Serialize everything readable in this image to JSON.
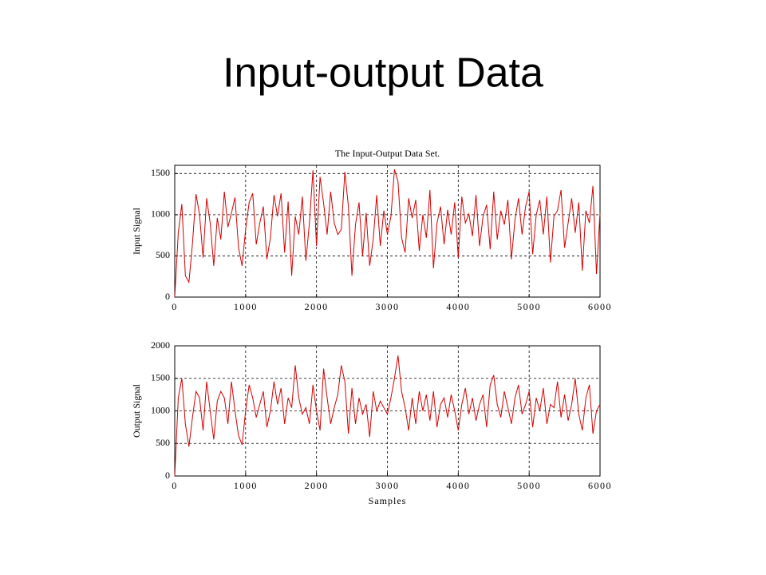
{
  "slide_title": "Input-output Data",
  "chart_data": [
    {
      "type": "line",
      "title": "The Input-Output Data Set.",
      "ylabel": "Input Signal",
      "color": "#d40000",
      "xlim": [
        0,
        6000
      ],
      "xticks": [
        0,
        1000,
        2000,
        3000,
        4000,
        5000,
        6000
      ],
      "ylim": [
        0,
        1600
      ],
      "yticks": [
        0,
        500,
        1000,
        1500
      ],
      "grid": true,
      "x": [
        0,
        50,
        100,
        150,
        200,
        250,
        300,
        350,
        400,
        450,
        500,
        550,
        600,
        650,
        700,
        750,
        800,
        850,
        900,
        950,
        1000,
        1050,
        1100,
        1150,
        1200,
        1250,
        1300,
        1350,
        1400,
        1450,
        1500,
        1550,
        1600,
        1650,
        1700,
        1750,
        1800,
        1850,
        1900,
        1950,
        2000,
        2050,
        2100,
        2150,
        2200,
        2250,
        2300,
        2350,
        2400,
        2450,
        2500,
        2550,
        2600,
        2650,
        2700,
        2750,
        2800,
        2850,
        2900,
        2950,
        3000,
        3050,
        3100,
        3150,
        3200,
        3250,
        3300,
        3350,
        3400,
        3450,
        3500,
        3550,
        3600,
        3650,
        3700,
        3750,
        3800,
        3850,
        3900,
        3950,
        4000,
        4050,
        4100,
        4150,
        4200,
        4250,
        4300,
        4350,
        4400,
        4450,
        4500,
        4550,
        4600,
        4650,
        4700,
        4750,
        4800,
        4850,
        4900,
        4950,
        5000,
        5050,
        5100,
        5150,
        5200,
        5250,
        5300,
        5350,
        5400,
        5450,
        5500,
        5550,
        5600,
        5650,
        5700,
        5750,
        5800,
        5850,
        5900,
        5950,
        6000
      ],
      "values": [
        0,
        780,
        1130,
        260,
        180,
        650,
        1250,
        1000,
        480,
        1200,
        900,
        380,
        960,
        700,
        1280,
        850,
        1020,
        1210,
        600,
        380,
        820,
        1150,
        1260,
        640,
        900,
        1100,
        460,
        720,
        1240,
        980,
        1260,
        540,
        1160,
        260,
        980,
        760,
        1220,
        440,
        900,
        1540,
        620,
        1460,
        1140,
        760,
        1280,
        900,
        760,
        820,
        1520,
        1100,
        260,
        880,
        1150,
        500,
        1020,
        380,
        700,
        1240,
        620,
        1050,
        760,
        980,
        1550,
        1400,
        720,
        540,
        1200,
        960,
        1180,
        560,
        1000,
        720,
        1300,
        350,
        900,
        1100,
        640,
        1060,
        760,
        1150,
        480,
        1220,
        900,
        1010,
        740,
        1240,
        620,
        980,
        1120,
        580,
        1280,
        700,
        1050,
        880,
        1180,
        460,
        940,
        1200,
        760,
        1100,
        1280,
        520,
        1000,
        1180,
        760,
        1220,
        420,
        980,
        1050,
        1300,
        600,
        900,
        1200,
        780,
        1150,
        320,
        1050,
        900,
        1350,
        280,
        1020
      ]
    },
    {
      "type": "line",
      "ylabel": "Output Signal",
      "xlabel": "Samples",
      "color": "#d40000",
      "xlim": [
        0,
        6000
      ],
      "xticks": [
        0,
        1000,
        2000,
        3000,
        4000,
        5000,
        6000
      ],
      "ylim": [
        0,
        2000
      ],
      "yticks": [
        0,
        500,
        1000,
        1500,
        2000
      ],
      "grid": true,
      "x": [
        0,
        50,
        100,
        150,
        200,
        250,
        300,
        350,
        400,
        450,
        500,
        550,
        600,
        650,
        700,
        750,
        800,
        850,
        900,
        950,
        1000,
        1050,
        1100,
        1150,
        1200,
        1250,
        1300,
        1350,
        1400,
        1450,
        1500,
        1550,
        1600,
        1650,
        1700,
        1750,
        1800,
        1850,
        1900,
        1950,
        2000,
        2050,
        2100,
        2150,
        2200,
        2250,
        2300,
        2350,
        2400,
        2450,
        2500,
        2550,
        2600,
        2650,
        2700,
        2750,
        2800,
        2850,
        2900,
        2950,
        3000,
        3050,
        3100,
        3150,
        3200,
        3250,
        3300,
        3350,
        3400,
        3450,
        3500,
        3550,
        3600,
        3650,
        3700,
        3750,
        3800,
        3850,
        3900,
        3950,
        4000,
        4050,
        4100,
        4150,
        4200,
        4250,
        4300,
        4350,
        4400,
        4450,
        4500,
        4550,
        4600,
        4650,
        4700,
        4750,
        4800,
        4850,
        4900,
        4950,
        5000,
        5050,
        5100,
        5150,
        5200,
        5250,
        5300,
        5350,
        5400,
        5450,
        5500,
        5550,
        5600,
        5650,
        5700,
        5750,
        5800,
        5850,
        5900,
        5950,
        6000
      ],
      "values": [
        0,
        1200,
        1500,
        800,
        450,
        900,
        1300,
        1200,
        700,
        1450,
        1000,
        560,
        1150,
        1300,
        1200,
        800,
        1450,
        1000,
        620,
        480,
        1000,
        1400,
        1200,
        900,
        1100,
        1300,
        750,
        1000,
        1450,
        1100,
        1350,
        800,
        1200,
        1050,
        1700,
        1200,
        950,
        1050,
        800,
        1400,
        1000,
        700,
        1650,
        1200,
        800,
        1050,
        1250,
        1700,
        1450,
        650,
        1350,
        800,
        1200,
        950,
        1100,
        600,
        1300,
        1000,
        1150,
        1050,
        950,
        1200,
        1500,
        1850,
        1300,
        1050,
        700,
        1200,
        800,
        1300,
        1000,
        1250,
        850,
        1300,
        750,
        1100,
        1200,
        900,
        1250,
        1000,
        700,
        1100,
        1350,
        950,
        1200,
        850,
        1100,
        1250,
        750,
        1400,
        1550,
        1100,
        900,
        1300,
        1050,
        800,
        1200,
        1400,
        950,
        1100,
        1300,
        750,
        1200,
        1000,
        1350,
        800,
        1100,
        1050,
        1450,
        900,
        1250,
        850,
        1100,
        1500,
        950,
        700,
        1200,
        1400,
        650,
        1000,
        1100
      ]
    }
  ]
}
